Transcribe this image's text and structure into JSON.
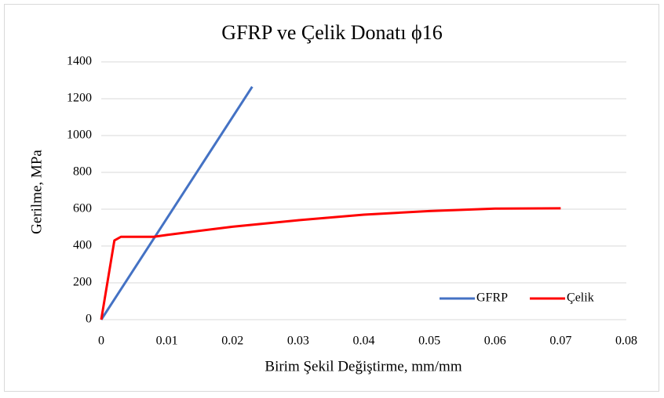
{
  "chart_data": {
    "type": "line",
    "title": "GFRP ve Çelik Donatı ϕ16",
    "x_label": "Birim Şekil Değiştirme, mm/mm",
    "y_label": "Gerilme, MPa",
    "series": [
      {
        "name": "GFRP",
        "color": "#4472c4",
        "x": [
          0,
          0.023
        ],
        "values": [
          0,
          1265
        ]
      },
      {
        "name": "Çelik",
        "color": "#ff0000",
        "x": [
          0,
          0.001,
          0.002,
          0.003,
          0.008,
          0.01,
          0.02,
          0.03,
          0.04,
          0.05,
          0.06,
          0.07
        ],
        "values": [
          0,
          215,
          430,
          450,
          450,
          460,
          505,
          540,
          570,
          590,
          603,
          605
        ]
      }
    ],
    "xlim": [
      0,
      0.08
    ],
    "xticks": [
      0,
      0.01,
      0.02,
      0.03,
      0.04,
      0.05,
      0.06,
      0.07,
      0.08
    ],
    "ylim": [
      0,
      1400
    ],
    "yticks": [
      0,
      200,
      400,
      600,
      800,
      1000,
      1200,
      1400
    ],
    "grid": true,
    "legend": "lower right"
  }
}
